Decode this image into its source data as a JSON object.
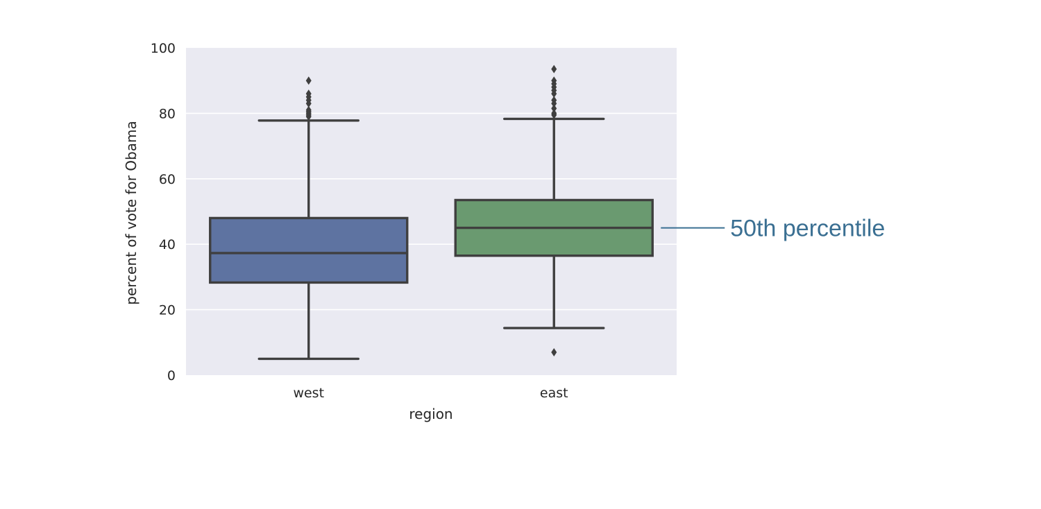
{
  "chart_data": {
    "type": "box",
    "xlabel": "region",
    "ylabel": "percent of vote for Obama",
    "ylim": [
      0,
      100
    ],
    "yticks": [
      0,
      20,
      40,
      60,
      80,
      100
    ],
    "grid": true,
    "categories": [
      "west",
      "east"
    ],
    "boxes": [
      {
        "category": "west",
        "color": "#5e73a1",
        "whisker_low": 5,
        "q1": 28.3,
        "median": 37.3,
        "q3": 48,
        "whisker_high": 77.8,
        "outliers": [
          79,
          79.5,
          80,
          80.5,
          81,
          83,
          84,
          85,
          86,
          90
        ]
      },
      {
        "category": "east",
        "color": "#6a9a70",
        "whisker_low": 14.4,
        "q1": 36.5,
        "median": 45,
        "q3": 53.5,
        "whisker_high": 78.3,
        "outliers": [
          7,
          79.5,
          80,
          81.5,
          83,
          84,
          86,
          87,
          88,
          89,
          90,
          93.5
        ]
      }
    ],
    "annotation": {
      "text": "50th percentile",
      "target_category": "east",
      "target_value": 45,
      "color": "#3a6f92"
    }
  }
}
